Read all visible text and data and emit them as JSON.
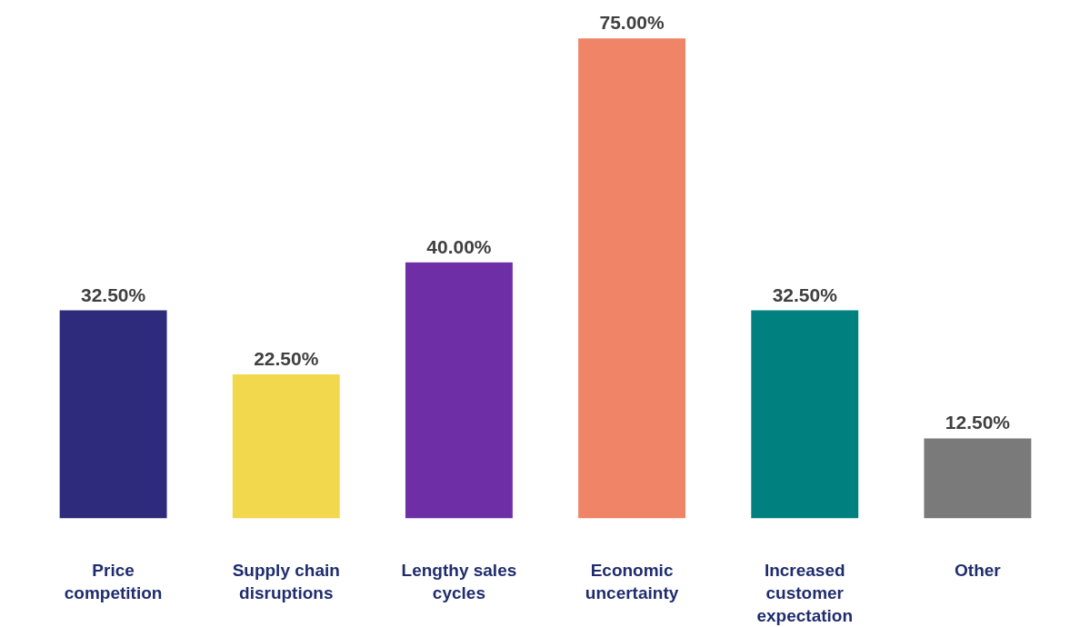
{
  "chart_data": {
    "type": "bar",
    "categories": [
      "Price competition",
      "Supply chain disruptions",
      "Lengthy sales cycles",
      "Economic uncertainty",
      "Increased customer expectation",
      "Other"
    ],
    "values": [
      32.5,
      22.5,
      40,
      75,
      32.5,
      12.5
    ],
    "value_labels": [
      "32.50%",
      "22.50%",
      "40.00%",
      "75.00%",
      "32.50%",
      "12.50%"
    ],
    "colors": [
      "#2e2a7c",
      "#f2d84c",
      "#6e2ea6",
      "#f08466",
      "#00807e",
      "#7a7a7a"
    ],
    "grid": false
  }
}
